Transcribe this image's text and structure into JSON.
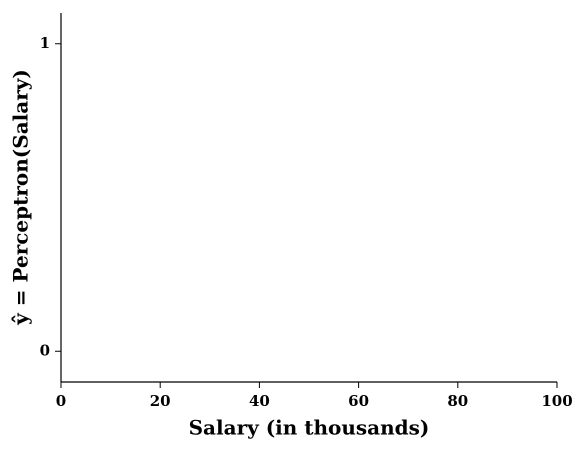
{
  "chart_data": {
    "type": "line",
    "xlabel": "Salary (in thousands)",
    "ylabel": "ŷ = Perceptron(Salary)",
    "xlim": [
      0,
      100
    ],
    "xticks": [
      0,
      20,
      40,
      60,
      80,
      100
    ],
    "ylim": [
      -0.1,
      1.1
    ],
    "yticks": [
      0,
      1
    ],
    "series": []
  }
}
